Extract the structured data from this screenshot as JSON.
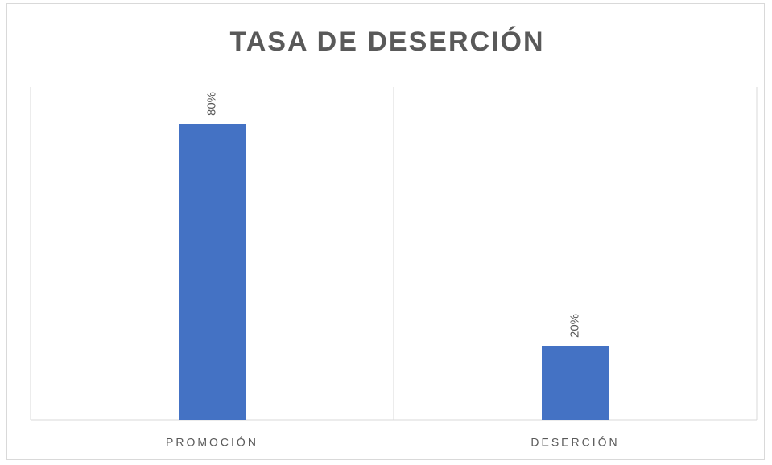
{
  "chart_data": {
    "type": "bar",
    "title": "TASA DE DESERCIÓN",
    "categories": [
      "PROMOCIÓN",
      "DESERCIÓN"
    ],
    "values": [
      80,
      20
    ],
    "value_labels": [
      "80%",
      "20%"
    ],
    "color": "#4472c4",
    "ylim": [
      0,
      90
    ]
  }
}
